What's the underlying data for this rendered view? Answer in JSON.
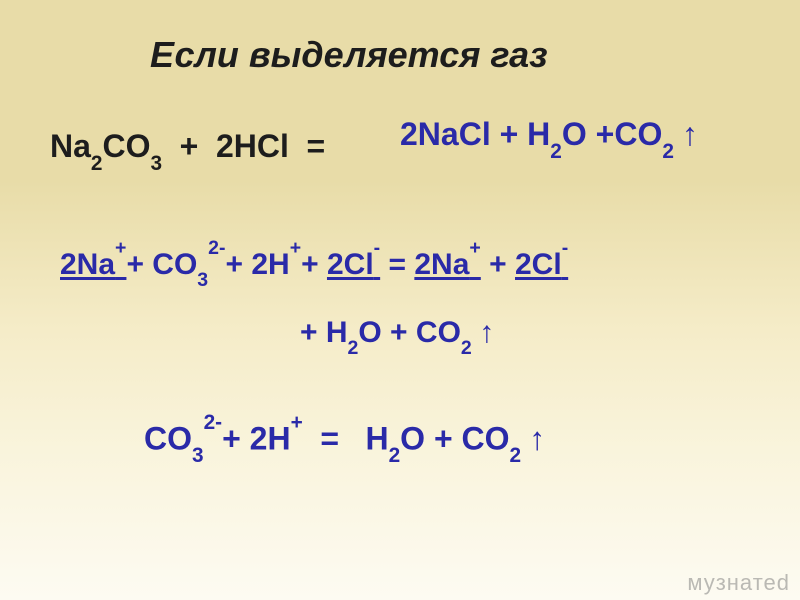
{
  "typography": {
    "title_fontsize": 36,
    "equation_fontsize": 32,
    "ionic_fontsize": 30,
    "watermark_fontsize": 22
  },
  "colors": {
    "text_black": "#1d1d1d",
    "text_blue": "#2a2aa8",
    "bg_top": "#e8dca8",
    "bg_bottom": "#fdfbf2",
    "watermark": "rgba(120,120,120,0.5)"
  },
  "title": "Если выделяется газ",
  "molecular_equation": {
    "lhs": "Na₂CO₃ + 2HCl =",
    "rhs": "2NaCl + H₂O + CO₂↑"
  },
  "full_ionic_equation": {
    "line1": "2Na⁺ + CO₃²⁻ + 2H⁺ + 2Cl⁻ = 2Na⁺ + 2Cl⁻",
    "line2": "+ H₂O + CO₂↑",
    "spectator_ions_underlined": [
      "2Na⁺",
      "2Cl⁻",
      "2Na⁺",
      "2Cl⁻"
    ]
  },
  "net_ionic_equation": "CO₃²⁻ + 2H⁺ = H₂O + CO₂↑",
  "watermark": "музнатеd",
  "arrow_glyph": "↑"
}
